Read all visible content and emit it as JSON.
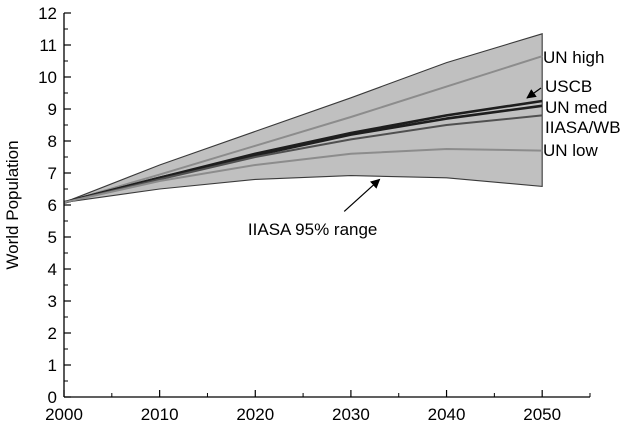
{
  "chart_data": {
    "type": "area",
    "title": "",
    "xlabel": "",
    "ylabel": "World Population",
    "xlim": [
      2000,
      2055
    ],
    "ylim": [
      0,
      12
    ],
    "x_ticks": [
      2000,
      2010,
      2020,
      2030,
      2040,
      2050
    ],
    "y_ticks": [
      0,
      1,
      2,
      3,
      4,
      5,
      6,
      7,
      8,
      9,
      10,
      11,
      12
    ],
    "grid": false,
    "legend": "none",
    "band": {
      "name": "IIASA 95% range",
      "x": [
        2000,
        2010,
        2020,
        2030,
        2040,
        2050
      ],
      "upper": [
        6.08,
        7.25,
        8.3,
        9.35,
        10.45,
        11.35
      ],
      "lower": [
        6.08,
        6.5,
        6.8,
        6.92,
        6.85,
        6.58
      ],
      "fill": "#c0c0c0",
      "stroke": "#3a3a3a"
    },
    "series": [
      {
        "name": "UN high",
        "x": [
          2000,
          2010,
          2020,
          2030,
          2040,
          2050
        ],
        "values": [
          6.08,
          6.95,
          7.85,
          8.75,
          9.7,
          10.65
        ],
        "color": "#8c8c8c"
      },
      {
        "name": "USCB",
        "x": [
          2000,
          2010,
          2020,
          2030,
          2040,
          2050
        ],
        "values": [
          6.08,
          6.85,
          7.6,
          8.25,
          8.8,
          9.25
        ],
        "color": "#1e1e1e"
      },
      {
        "name": "UN med",
        "x": [
          2000,
          2010,
          2020,
          2030,
          2040,
          2050
        ],
        "values": [
          6.08,
          6.85,
          7.55,
          8.2,
          8.7,
          9.1
        ],
        "color": "#1e1e1e"
      },
      {
        "name": "IIASA/WB",
        "x": [
          2000,
          2010,
          2020,
          2030,
          2040,
          2050
        ],
        "values": [
          6.08,
          6.8,
          7.5,
          8.05,
          8.5,
          8.8
        ],
        "color": "#505050"
      },
      {
        "name": "UN low",
        "x": [
          2000,
          2010,
          2020,
          2030,
          2040,
          2050
        ],
        "values": [
          6.08,
          6.75,
          7.25,
          7.6,
          7.75,
          7.7
        ],
        "color": "#8c8c8c"
      }
    ],
    "annotations": [
      {
        "text": "IIASA 95% range",
        "text_x": 2026.0,
        "text_y": 5.25,
        "arrow_from_x": 2029.3,
        "arrow_from_y": 5.8,
        "arrow_to_x": 2033.0,
        "arrow_to_y": 6.8
      }
    ]
  }
}
